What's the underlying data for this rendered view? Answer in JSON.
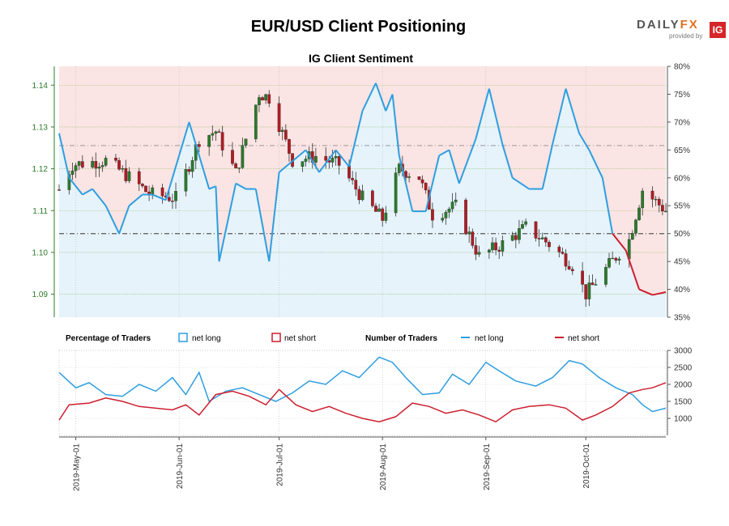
{
  "header": {
    "title": "EUR/USD Client Positioning",
    "subtitle": "IG Client Sentiment",
    "logo_text_a": "DAILY",
    "logo_text_b": "FX",
    "logo_sub": "provided by",
    "logo_ig": "IG"
  },
  "legend": {
    "pct_title": "Percentage of Traders",
    "pct_long": "net long",
    "pct_short": "net short",
    "num_title": "Number of Traders",
    "num_long": "net long",
    "num_short": "net short"
  },
  "colors": {
    "long": "#2e9ee0",
    "short": "#cc1f2f",
    "long_fill": "#e6f3fb",
    "short_fill": "#fbe4e4",
    "up_candle": "#2b7a2b",
    "down_candle": "#b01c24",
    "price_axis": "#2b7a2b"
  },
  "chart_data": [
    {
      "type": "candlestick",
      "title": "IG Client Sentiment",
      "price_axis": {
        "side": "left",
        "ticks": [
          "1.09",
          "1.10",
          "1.11",
          "1.12",
          "1.13",
          "1.14"
        ],
        "ylim": [
          1.0845,
          1.1445
        ]
      },
      "percent_axis": {
        "side": "right",
        "ticks": [
          "35%",
          "40%",
          "45%",
          "50%",
          "55%",
          "60%",
          "65%",
          "70%",
          "75%",
          "80%"
        ],
        "ylim": [
          35,
          80
        ]
      },
      "x_ticks": [
        "2019-May-01",
        "2019-Jun-01",
        "2019-Jul-01",
        "2019-Aug-01",
        "2019-Sep-01",
        "2019-Oct-01"
      ],
      "x_range": [
        "2019-04-26",
        "2019-10-25"
      ],
      "price_close_anchors": [
        [
          "2019-04-26",
          1.115
        ],
        [
          "2019-04-30",
          1.121
        ],
        [
          "2019-05-10",
          1.122
        ],
        [
          "2019-05-17",
          1.118
        ],
        [
          "2019-05-23",
          1.114
        ],
        [
          "2019-05-31",
          1.113
        ],
        [
          "2019-06-07",
          1.127
        ],
        [
          "2019-06-12",
          1.129
        ],
        [
          "2019-06-18",
          1.119
        ],
        [
          "2019-06-25",
          1.138
        ],
        [
          "2019-06-28",
          1.137
        ],
        [
          "2019-07-05",
          1.122
        ],
        [
          "2019-07-12",
          1.123
        ],
        [
          "2019-07-19",
          1.121
        ],
        [
          "2019-07-26",
          1.113
        ],
        [
          "2019-08-01",
          1.108
        ],
        [
          "2019-08-06",
          1.12
        ],
        [
          "2019-08-12",
          1.118
        ],
        [
          "2019-08-16",
          1.109
        ],
        [
          "2019-08-23",
          1.111
        ],
        [
          "2019-08-30",
          1.099
        ],
        [
          "2019-09-06",
          1.102
        ],
        [
          "2019-09-13",
          1.106
        ],
        [
          "2019-09-20",
          1.102
        ],
        [
          "2019-09-27",
          1.097
        ],
        [
          "2019-10-01",
          1.09
        ],
        [
          "2019-10-08",
          1.097
        ],
        [
          "2019-10-14",
          1.103
        ],
        [
          "2019-10-18",
          1.115
        ],
        [
          "2019-10-25",
          1.11
        ]
      ],
      "net_long_pct": [
        [
          "2019-04-26",
          68
        ],
        [
          "2019-04-29",
          60
        ],
        [
          "2019-05-03",
          57
        ],
        [
          "2019-05-06",
          58
        ],
        [
          "2019-05-10",
          55
        ],
        [
          "2019-05-14",
          50
        ],
        [
          "2019-05-17",
          55
        ],
        [
          "2019-05-21",
          57
        ],
        [
          "2019-05-24",
          57
        ],
        [
          "2019-05-28",
          56
        ],
        [
          "2019-06-01",
          64
        ],
        [
          "2019-06-04",
          70
        ],
        [
          "2019-06-07",
          64
        ],
        [
          "2019-06-10",
          58
        ],
        [
          "2019-06-12",
          58.5
        ],
        [
          "2019-06-13",
          45
        ],
        [
          "2019-06-18",
          59
        ],
        [
          "2019-06-21",
          58
        ],
        [
          "2019-06-24",
          58
        ],
        [
          "2019-06-28",
          45
        ],
        [
          "2019-07-01",
          61
        ],
        [
          "2019-07-05",
          63
        ],
        [
          "2019-07-09",
          65
        ],
        [
          "2019-07-13",
          61
        ],
        [
          "2019-07-18",
          65
        ],
        [
          "2019-07-22",
          62
        ],
        [
          "2019-07-26",
          72
        ],
        [
          "2019-07-30",
          77
        ],
        [
          "2019-08-02",
          72
        ],
        [
          "2019-08-04",
          75
        ],
        [
          "2019-08-06",
          64
        ],
        [
          "2019-08-10",
          54
        ],
        [
          "2019-08-14",
          54
        ],
        [
          "2019-08-18",
          64
        ],
        [
          "2019-08-21",
          65
        ],
        [
          "2019-08-24",
          59
        ],
        [
          "2019-08-29",
          67
        ],
        [
          "2019-09-02",
          76
        ],
        [
          "2019-09-06",
          66
        ],
        [
          "2019-09-09",
          60
        ],
        [
          "2019-09-14",
          58
        ],
        [
          "2019-09-18",
          58
        ],
        [
          "2019-09-21",
          66
        ],
        [
          "2019-09-25",
          76
        ],
        [
          "2019-09-29",
          68
        ],
        [
          "2019-10-02",
          65
        ],
        [
          "2019-10-06",
          60
        ],
        [
          "2019-10-09",
          50
        ],
        [
          "2019-10-13",
          47
        ],
        [
          "2019-10-17",
          40
        ],
        [
          "2019-10-21",
          39
        ],
        [
          "2019-10-25",
          39.5
        ]
      ],
      "crossover_pct": 50
    },
    {
      "type": "line",
      "title": "Number of Traders",
      "y_axis": {
        "side": "right",
        "ticks": [
          "1000",
          "1500",
          "2000",
          "2500",
          "3000"
        ],
        "ylim": [
          500,
          3000
        ]
      },
      "series": [
        {
          "name": "net long",
          "points": [
            [
              "2019-04-26",
              2350
            ],
            [
              "2019-05-01",
              1900
            ],
            [
              "2019-05-05",
              2050
            ],
            [
              "2019-05-10",
              1700
            ],
            [
              "2019-05-15",
              1650
            ],
            [
              "2019-05-20",
              2000
            ],
            [
              "2019-05-25",
              1800
            ],
            [
              "2019-05-30",
              2200
            ],
            [
              "2019-06-03",
              1700
            ],
            [
              "2019-06-07",
              2350
            ],
            [
              "2019-06-10",
              1500
            ],
            [
              "2019-06-15",
              1800
            ],
            [
              "2019-06-20",
              1900
            ],
            [
              "2019-06-25",
              1700
            ],
            [
              "2019-06-30",
              1500
            ],
            [
              "2019-07-05",
              1750
            ],
            [
              "2019-07-10",
              2100
            ],
            [
              "2019-07-15",
              2000
            ],
            [
              "2019-07-20",
              2400
            ],
            [
              "2019-07-25",
              2200
            ],
            [
              "2019-07-31",
              2800
            ],
            [
              "2019-08-04",
              2650
            ],
            [
              "2019-08-08",
              2200
            ],
            [
              "2019-08-13",
              1700
            ],
            [
              "2019-08-18",
              1750
            ],
            [
              "2019-08-22",
              2300
            ],
            [
              "2019-08-27",
              2000
            ],
            [
              "2019-09-01",
              2650
            ],
            [
              "2019-09-05",
              2400
            ],
            [
              "2019-09-10",
              2100
            ],
            [
              "2019-09-16",
              1950
            ],
            [
              "2019-09-21",
              2200
            ],
            [
              "2019-09-26",
              2700
            ],
            [
              "2019-09-30",
              2600
            ],
            [
              "2019-10-05",
              2200
            ],
            [
              "2019-10-10",
              1900
            ],
            [
              "2019-10-15",
              1700
            ],
            [
              "2019-10-18",
              1400
            ],
            [
              "2019-10-21",
              1200
            ],
            [
              "2019-10-25",
              1300
            ]
          ]
        },
        {
          "name": "net short",
          "points": [
            [
              "2019-04-26",
              950
            ],
            [
              "2019-04-29",
              1400
            ],
            [
              "2019-05-05",
              1450
            ],
            [
              "2019-05-10",
              1600
            ],
            [
              "2019-05-15",
              1500
            ],
            [
              "2019-05-20",
              1350
            ],
            [
              "2019-05-25",
              1300
            ],
            [
              "2019-05-30",
              1250
            ],
            [
              "2019-06-03",
              1400
            ],
            [
              "2019-06-07",
              1100
            ],
            [
              "2019-06-12",
              1700
            ],
            [
              "2019-06-17",
              1800
            ],
            [
              "2019-06-22",
              1650
            ],
            [
              "2019-06-27",
              1400
            ],
            [
              "2019-07-01",
              1850
            ],
            [
              "2019-07-06",
              1400
            ],
            [
              "2019-07-11",
              1200
            ],
            [
              "2019-07-16",
              1350
            ],
            [
              "2019-07-21",
              1150
            ],
            [
              "2019-07-26",
              1000
            ],
            [
              "2019-07-31",
              900
            ],
            [
              "2019-08-05",
              1050
            ],
            [
              "2019-08-10",
              1450
            ],
            [
              "2019-08-15",
              1350
            ],
            [
              "2019-08-20",
              1150
            ],
            [
              "2019-08-25",
              1250
            ],
            [
              "2019-08-30",
              1100
            ],
            [
              "2019-09-04",
              900
            ],
            [
              "2019-09-09",
              1250
            ],
            [
              "2019-09-14",
              1350
            ],
            [
              "2019-09-20",
              1400
            ],
            [
              "2019-09-25",
              1300
            ],
            [
              "2019-09-30",
              950
            ],
            [
              "2019-10-04",
              1100
            ],
            [
              "2019-10-09",
              1350
            ],
            [
              "2019-10-14",
              1750
            ],
            [
              "2019-10-18",
              1850
            ],
            [
              "2019-10-21",
              1900
            ],
            [
              "2019-10-25",
              2050
            ]
          ]
        }
      ]
    }
  ]
}
